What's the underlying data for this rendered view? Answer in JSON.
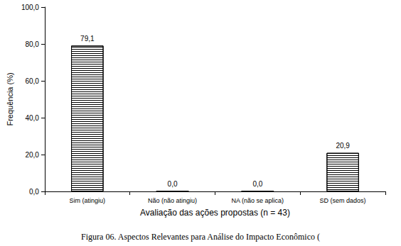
{
  "chart_data": {
    "type": "bar",
    "title": "Figura 06. Aspectos Relevantes para Análise do Impacto Econômico (",
    "x_label": "Avaliação das ações propostas (n = 43)",
    "y_label": "Frequência (%)",
    "categories": [
      "Sim (atingiu)",
      "Não (não atingiu)",
      "NA (não se aplica)",
      "SD (sem dados)"
    ],
    "values": [
      79.1,
      0.0,
      0.0,
      20.9
    ],
    "value_labels": [
      "79,1",
      "0,0",
      "0,0",
      "20,9"
    ],
    "color": "#000000",
    "ylim": [
      0,
      100
    ],
    "yticks": [
      {
        "value": 0,
        "label": "0,0"
      },
      {
        "value": 20,
        "label": "20,0"
      },
      {
        "value": 40,
        "label": "40,0"
      },
      {
        "value": 60,
        "label": "60,0"
      },
      {
        "value": 80,
        "label": "80,0"
      },
      {
        "value": 100,
        "label": "100,0"
      }
    ],
    "grid": false,
    "data_labels": true
  }
}
